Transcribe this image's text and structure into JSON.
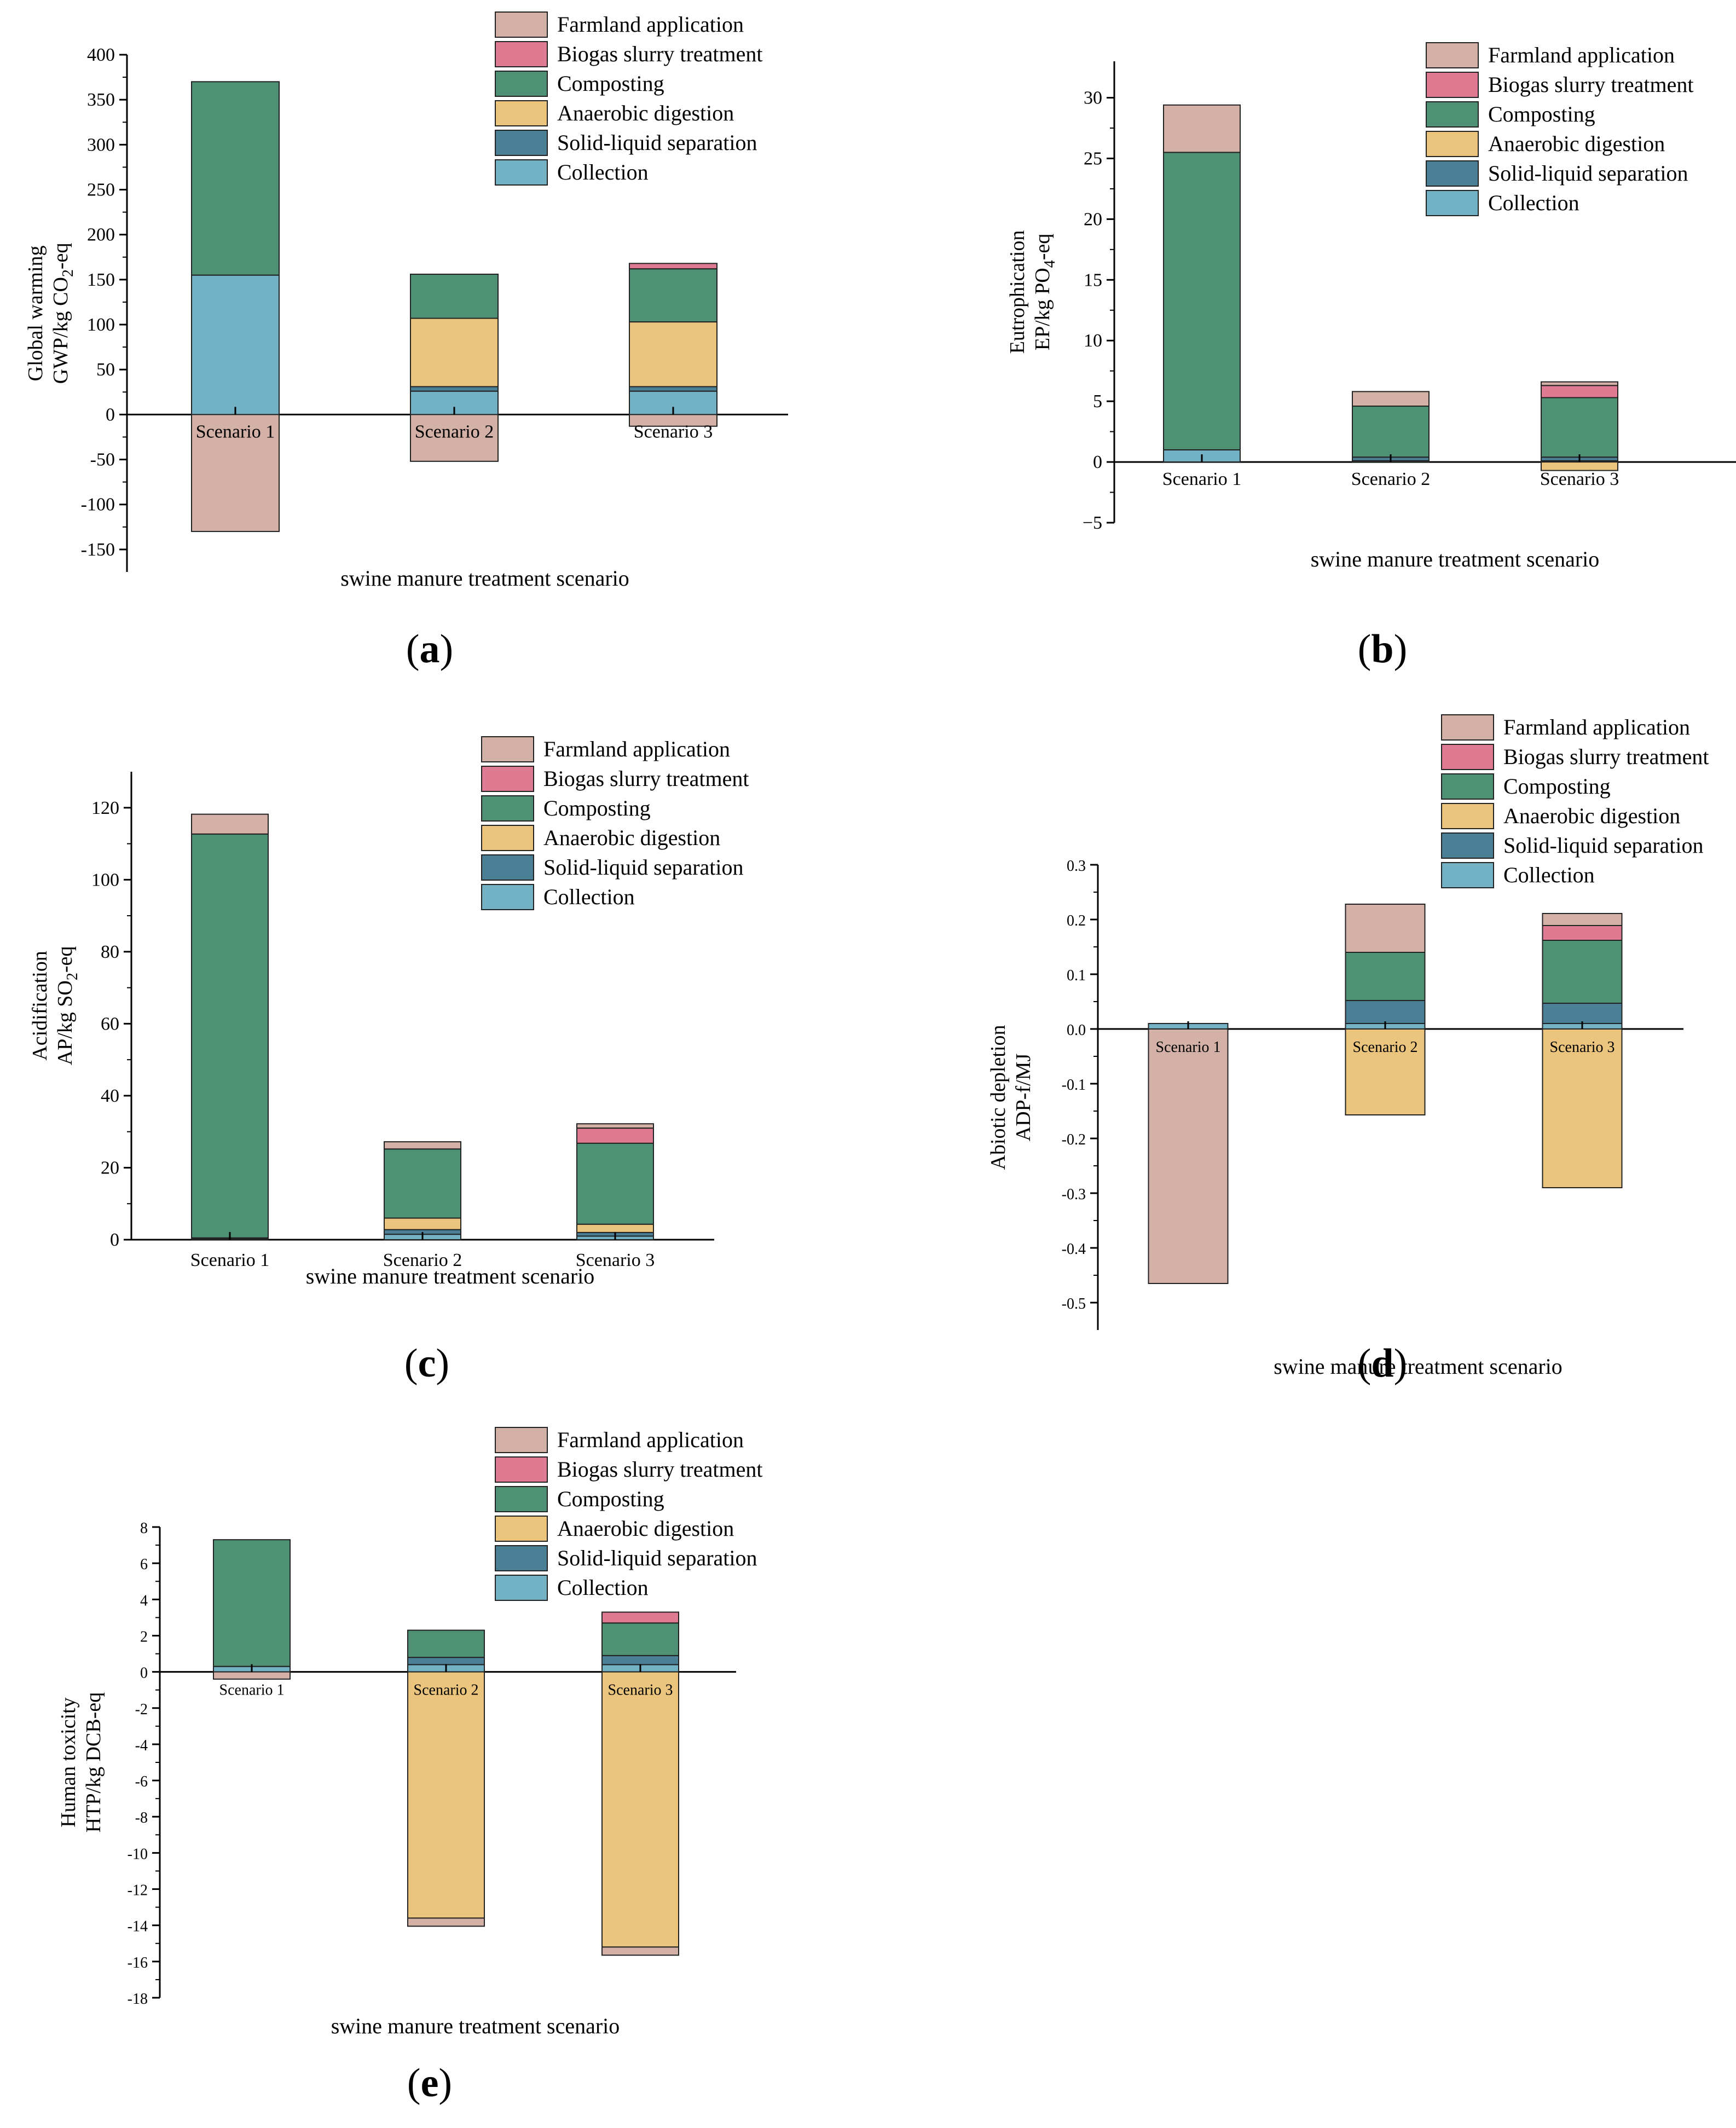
{
  "colors": {
    "Farmland application": "#d4b1a7",
    "Biogas slurry treatment": "#de7b92",
    "Composting": "#4e9174",
    "Anaerobic digestion": "#ebc57d",
    "Solid-liquid separation": "#4b7f96",
    "Collection": "#72b2c4"
  },
  "legend_order": [
    "Farmland application",
    "Biogas slurry treatment",
    "Composting",
    "Anaerobic digestion",
    "Solid-liquid separation",
    "Collection"
  ],
  "chart_data": [
    {
      "id": "a",
      "type": "bar",
      "stacked": true,
      "caption": "a",
      "categories": [
        "Scenario 1",
        "Scenario 2",
        "Scenario 3"
      ],
      "ylabel_line1": "Global warming",
      "ylabel_line2_main": "GWP/kg CO",
      "ylabel_line2_sub": "2",
      "ylabel_line2_tail": "-eq",
      "xlabel": "swine manure treatment scenario",
      "ylim": [
        -175,
        400
      ],
      "yticks": [
        -150,
        -100,
        -50,
        0,
        50,
        100,
        150,
        200,
        250,
        300,
        350,
        400
      ],
      "ytick_labels": [
        "-150",
        "-100",
        "-50",
        "0",
        "50",
        "100",
        "150",
        "200",
        "250",
        "300",
        "350",
        "400"
      ],
      "legend_position": "top-right",
      "series": [
        {
          "name": "Collection",
          "values": [
            155,
            26,
            26
          ]
        },
        {
          "name": "Solid-liquid separation",
          "values": [
            0,
            5,
            5
          ]
        },
        {
          "name": "Anaerobic digestion",
          "values": [
            0,
            76,
            72
          ]
        },
        {
          "name": "Composting",
          "values": [
            215,
            49,
            59
          ]
        },
        {
          "name": "Biogas slurry treatment",
          "values": [
            0,
            0,
            6
          ]
        },
        {
          "name": "Farmland application",
          "values": [
            -130,
            -52,
            -13
          ]
        }
      ]
    },
    {
      "id": "b",
      "type": "bar",
      "stacked": true,
      "caption": "b",
      "categories": [
        "Scenario 1",
        "Scenario 2",
        "Scenario 3"
      ],
      "ylabel_line1": "Eutrophication",
      "ylabel_line2_main": "EP/kg PO",
      "ylabel_line2_sub": "4",
      "ylabel_line2_tail": "-eq",
      "xlabel": "swine manure treatment scenario",
      "ylim": [
        -5,
        33
      ],
      "yticks": [
        -5,
        0,
        5,
        10,
        15,
        20,
        25,
        30
      ],
      "ytick_labels": [
        "−5",
        "0",
        "5",
        "10",
        "15",
        "20",
        "25",
        "30"
      ],
      "legend_position": "top-right",
      "series": [
        {
          "name": "Collection",
          "values": [
            1.0,
            0.1,
            0.1
          ]
        },
        {
          "name": "Solid-liquid separation",
          "values": [
            0,
            0.3,
            0.3
          ]
        },
        {
          "name": "Anaerobic digestion",
          "values": [
            0,
            0,
            -0.7
          ]
        },
        {
          "name": "Composting",
          "values": [
            24.5,
            4.2,
            4.9
          ]
        },
        {
          "name": "Biogas slurry treatment",
          "values": [
            0,
            0,
            1.0
          ]
        },
        {
          "name": "Farmland application",
          "values": [
            3.9,
            1.2,
            0.3
          ]
        }
      ]
    },
    {
      "id": "c",
      "type": "bar",
      "stacked": true,
      "caption": "c",
      "categories": [
        "Scenario 1",
        "Scenario 2",
        "Scenario 3"
      ],
      "ylabel_line1": "Acidification",
      "ylabel_line2_main": "AP/kg SO",
      "ylabel_line2_sub": "2",
      "ylabel_line2_tail": "-eq",
      "xlabel": "swine manure treatment scenario",
      "ylim": [
        0,
        130
      ],
      "yticks": [
        0,
        20,
        40,
        60,
        80,
        100,
        120
      ],
      "ytick_labels": [
        "0",
        "20",
        "40",
        "60",
        "80",
        "100",
        "120"
      ],
      "legend_position": "top-right",
      "series": [
        {
          "name": "Collection",
          "values": [
            0.3,
            1.5,
            1.0
          ]
        },
        {
          "name": "Solid-liquid separation",
          "values": [
            0.2,
            1.3,
            1.0
          ]
        },
        {
          "name": "Anaerobic digestion",
          "values": [
            0,
            3.2,
            2.3
          ]
        },
        {
          "name": "Composting",
          "values": [
            112.2,
            19.2,
            22.5
          ]
        },
        {
          "name": "Biogas slurry treatment",
          "values": [
            0,
            0,
            4.2
          ]
        },
        {
          "name": "Farmland application",
          "values": [
            5.5,
            2.0,
            1.2
          ]
        }
      ]
    },
    {
      "id": "d",
      "type": "bar",
      "stacked": true,
      "caption": "d",
      "categories": [
        "Scenario 1",
        "Scenario 2",
        "Scenario 3"
      ],
      "ylabel_line1": "Abiotic depletion",
      "ylabel_line2_main": "ADP-f/MJ",
      "ylabel_line2_sub": "",
      "ylabel_line2_tail": "",
      "xlabel": "swine manure treatment scenario",
      "ylim": [
        -0.55,
        0.3
      ],
      "yticks": [
        -0.5,
        -0.4,
        -0.3,
        -0.2,
        -0.1,
        0,
        0.1,
        0.2,
        0.3
      ],
      "ytick_labels": [
        "-0.5",
        "-0.4",
        "-0.3",
        "-0.2",
        "-0.1",
        "0.0",
        "0.1",
        "0.2",
        "0.3"
      ],
      "legend_position": "top-right",
      "series": [
        {
          "name": "Collection",
          "values": [
            0.01,
            0.01,
            0.01
          ]
        },
        {
          "name": "Solid-liquid separation",
          "values": [
            0,
            0.042,
            0.037
          ]
        },
        {
          "name": "Anaerobic digestion",
          "values": [
            0,
            -0.157,
            -0.29
          ]
        },
        {
          "name": "Composting",
          "values": [
            0,
            0.088,
            0.115
          ]
        },
        {
          "name": "Biogas slurry treatment",
          "values": [
            0,
            0,
            0.027
          ]
        },
        {
          "name": "Farmland application",
          "values": [
            -0.465,
            0.088,
            0.022
          ]
        }
      ]
    },
    {
      "id": "e",
      "type": "bar",
      "stacked": true,
      "caption": "e",
      "categories": [
        "Scenario 1",
        "Scenario 2",
        "Scenario 3"
      ],
      "ylabel_line1": "Human toxicity",
      "ylabel_line2_main": "HTP/kg DCB-eq",
      "ylabel_line2_sub": "",
      "ylabel_line2_tail": "",
      "xlabel": "swine manure treatment scenario",
      "ylim": [
        -18,
        8
      ],
      "yticks": [
        -18,
        -16,
        -14,
        -12,
        -10,
        -8,
        -6,
        -4,
        -2,
        0,
        2,
        4,
        6,
        8
      ],
      "ytick_labels": [
        "-18",
        "-16",
        "-14",
        "-12",
        "-10",
        "-8",
        "-6",
        "-4",
        "-2",
        "0",
        "2",
        "4",
        "6",
        "8"
      ],
      "legend_position": "top-right",
      "series": [
        {
          "name": "Collection",
          "values": [
            0.3,
            0.4,
            0.4
          ]
        },
        {
          "name": "Solid-liquid separation",
          "values": [
            0,
            0.4,
            0.5
          ]
        },
        {
          "name": "Anaerobic digestion",
          "values": [
            0,
            -13.6,
            -15.2
          ]
        },
        {
          "name": "Composting",
          "values": [
            7.0,
            1.5,
            1.8
          ]
        },
        {
          "name": "Biogas slurry treatment",
          "values": [
            0,
            0,
            0.6
          ]
        },
        {
          "name": "Farmland application",
          "values": [
            -0.4,
            -0.45,
            -0.45
          ]
        }
      ]
    }
  ]
}
